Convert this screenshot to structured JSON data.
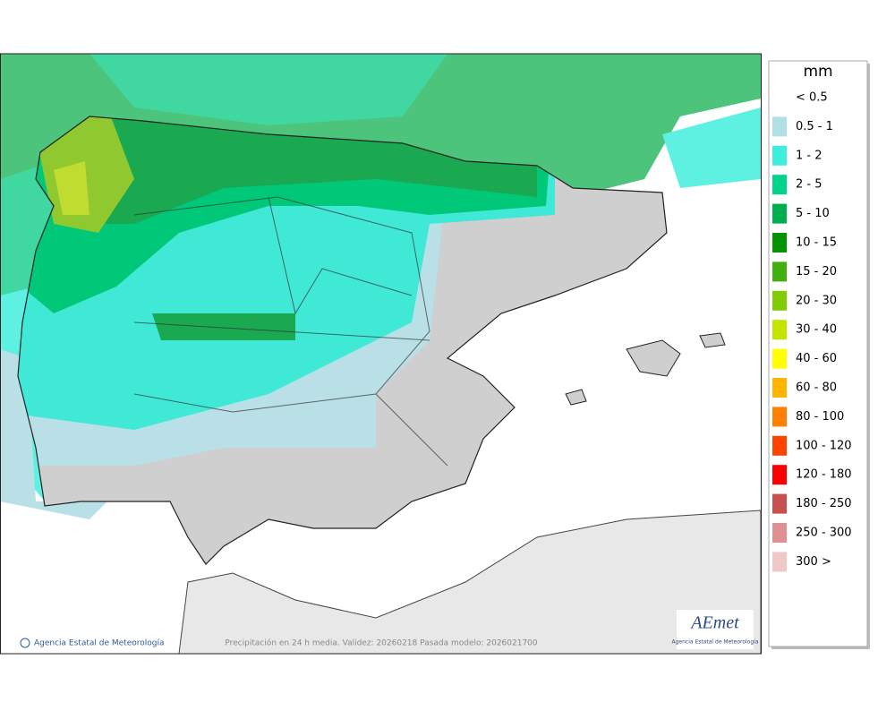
{
  "legend": {
    "title": "mm",
    "items": [
      {
        "label": "< 0.5",
        "color": null
      },
      {
        "label": "0.5 - 1",
        "color": "#b0dfe5"
      },
      {
        "label": "1 - 2",
        "color": "#3cefdc"
      },
      {
        "label": "2 - 5",
        "color": "#00d48a"
      },
      {
        "label": "5 - 10",
        "color": "#00b04e"
      },
      {
        "label": "10 - 15",
        "color": "#009400"
      },
      {
        "label": "15 - 20",
        "color": "#40b010"
      },
      {
        "label": "20 - 30",
        "color": "#80cc00"
      },
      {
        "label": "30 - 40",
        "color": "#c4e400"
      },
      {
        "label": "40 - 60",
        "color": "#ffff00"
      },
      {
        "label": "60 - 80",
        "color": "#ffb400"
      },
      {
        "label": "80 - 100",
        "color": "#ff8000"
      },
      {
        "label": "100 - 120",
        "color": "#ff4400"
      },
      {
        "label": "120 - 180",
        "color": "#ff0000"
      },
      {
        "label": "180 - 250",
        "color": "#c85050"
      },
      {
        "label": "250 - 300",
        "color": "#e09090"
      },
      {
        "label": "300 >",
        "color": "#f0c8c8"
      }
    ]
  },
  "credit": "Agencia Estatal de Meteorología",
  "footer": "Precipitación en 24 h media. Validez: 20260218 Pasada modelo: 2026021700",
  "logo": {
    "name": "AEmet",
    "subtitle": "Agencia Estatal de Meteorología"
  }
}
